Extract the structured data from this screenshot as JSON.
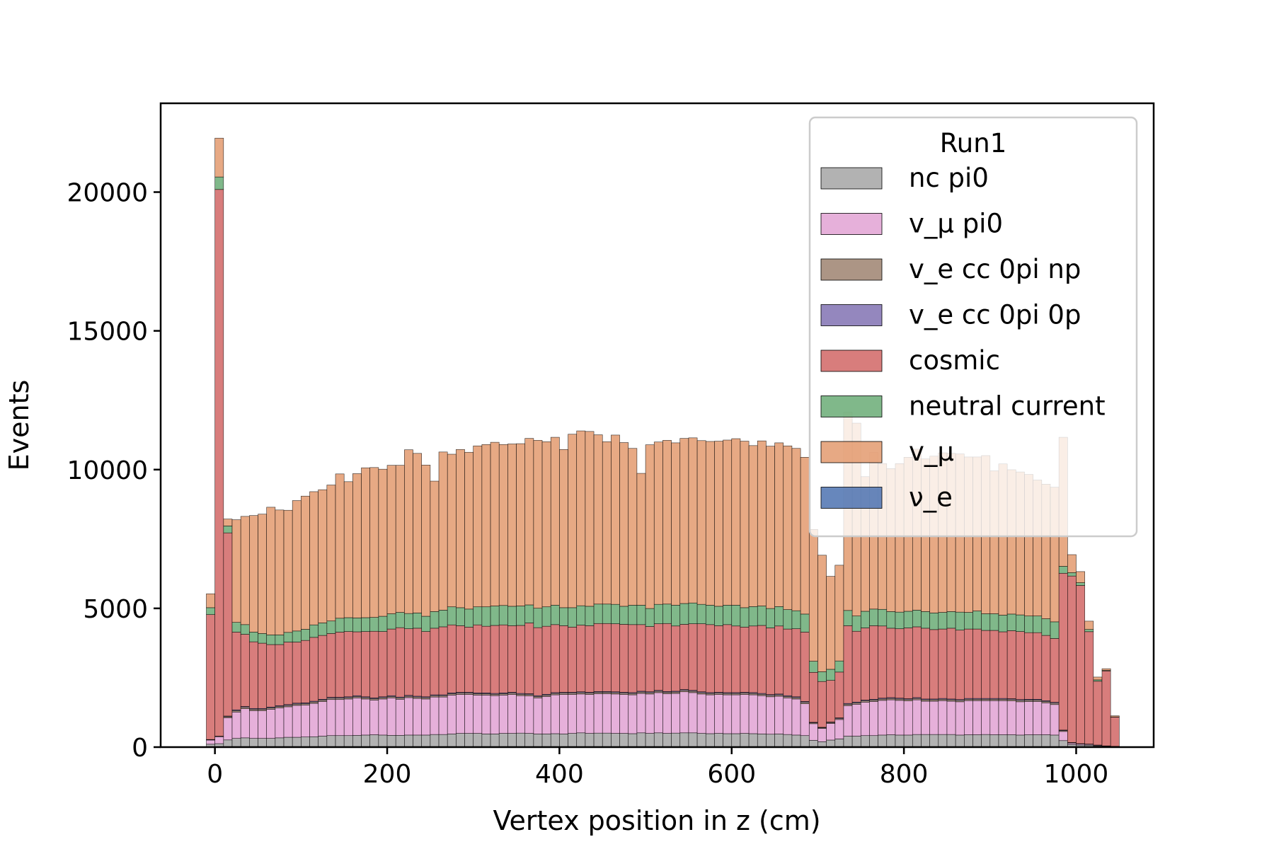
{
  "chart_data": {
    "type": "bar",
    "stacked": true,
    "histogram": true,
    "xlabel": "Vertex position in z (cm)",
    "ylabel": "Events",
    "xlim": [
      -63,
      1090
    ],
    "ylim": [
      0,
      23200
    ],
    "xticks": [
      0,
      200,
      400,
      600,
      800,
      1000
    ],
    "yticks": [
      0,
      5000,
      10000,
      15000,
      20000
    ],
    "bin_start": -10,
    "bin_width": 10,
    "legend": {
      "title": "Run1",
      "placement": "upper right",
      "entries": [
        "nc pi0",
        "v_μ pi0",
        "v_e cc 0pi np",
        "v_e cc 0pi 0p",
        "cosmic",
        "neutral current",
        "v_μ",
        "ν_e"
      ]
    },
    "series": [
      {
        "name": "ν_e",
        "color": "#4c72b0",
        "values": [
          5,
          5,
          10,
          15,
          15,
          15,
          15,
          15,
          15,
          15,
          15,
          15,
          15,
          15,
          15,
          15,
          15,
          15,
          15,
          15,
          15,
          15,
          15,
          15,
          15,
          15,
          15,
          15,
          15,
          15,
          15,
          15,
          15,
          15,
          15,
          15,
          15,
          15,
          15,
          15,
          15,
          15,
          15,
          15,
          15,
          15,
          15,
          15,
          15,
          15,
          15,
          15,
          15,
          15,
          15,
          15,
          15,
          15,
          15,
          15,
          15,
          15,
          15,
          15,
          15,
          15,
          15,
          15,
          15,
          15,
          15,
          15,
          15,
          15,
          15,
          15,
          15,
          15,
          15,
          15,
          15,
          15,
          15,
          15,
          15,
          15,
          15,
          15,
          15,
          15,
          15,
          15,
          15,
          15,
          15,
          15,
          15,
          15,
          15,
          15,
          15,
          15,
          10,
          5,
          5,
          5
        ]
      },
      {
        "name": "nc pi0",
        "color": "#a5a5a5",
        "values": [
          100,
          120,
          250,
          300,
          320,
          300,
          300,
          300,
          320,
          340,
          340,
          350,
          360,
          380,
          400,
          400,
          400,
          410,
          420,
          430,
          420,
          410,
          410,
          420,
          420,
          420,
          440,
          440,
          460,
          480,
          480,
          480,
          460,
          460,
          480,
          480,
          490,
          480,
          460,
          460,
          470,
          460,
          480,
          500,
          480,
          490,
          490,
          480,
          480,
          470,
          500,
          480,
          500,
          480,
          490,
          500,
          500,
          480,
          470,
          480,
          470,
          470,
          480,
          470,
          460,
          450,
          460,
          440,
          420,
          400,
          230,
          180,
          240,
          280,
          380,
          380,
          400,
          400,
          420,
          430,
          420,
          420,
          440,
          440,
          440,
          440,
          440,
          420,
          430,
          430,
          440,
          430,
          430,
          430,
          420,
          430,
          430,
          430,
          420,
          220,
          80,
          60,
          60,
          40,
          20,
          15
        ]
      },
      {
        "name": "v_μ pi0",
        "color": "#e2a2d4",
        "values": [
          150,
          250,
          800,
          950,
          1050,
          1000,
          1000,
          1050,
          1080,
          1100,
          1150,
          1150,
          1200,
          1250,
          1300,
          1300,
          1320,
          1350,
          1300,
          1250,
          1300,
          1350,
          1300,
          1350,
          1320,
          1300,
          1350,
          1350,
          1400,
          1400,
          1400,
          1380,
          1400,
          1380,
          1380,
          1400,
          1350,
          1350,
          1300,
          1350,
          1400,
          1420,
          1400,
          1400,
          1400,
          1420,
          1420,
          1420,
          1400,
          1400,
          1420,
          1420,
          1450,
          1430,
          1430,
          1480,
          1450,
          1420,
          1400,
          1400,
          1400,
          1400,
          1400,
          1400,
          1380,
          1350,
          1360,
          1320,
          1300,
          1150,
          600,
          480,
          600,
          700,
          1100,
          1150,
          1200,
          1230,
          1250,
          1260,
          1250,
          1230,
          1250,
          1200,
          1200,
          1220,
          1200,
          1200,
          1230,
          1230,
          1220,
          1230,
          1230,
          1220,
          1200,
          1200,
          1200,
          1150,
          1100,
          330,
          50,
          40,
          30,
          20,
          10,
          5
        ]
      },
      {
        "name": "v_e cc 0pi np",
        "color": "#9e8370",
        "values": [
          10,
          10,
          40,
          50,
          50,
          50,
          50,
          50,
          50,
          50,
          50,
          50,
          50,
          50,
          50,
          50,
          50,
          50,
          50,
          50,
          50,
          50,
          50,
          50,
          50,
          50,
          50,
          50,
          50,
          50,
          50,
          50,
          50,
          50,
          50,
          50,
          50,
          50,
          50,
          50,
          50,
          50,
          50,
          50,
          50,
          50,
          50,
          50,
          50,
          50,
          50,
          50,
          50,
          50,
          50,
          50,
          50,
          50,
          50,
          50,
          50,
          50,
          50,
          50,
          50,
          50,
          50,
          50,
          50,
          50,
          30,
          25,
          30,
          35,
          50,
          50,
          50,
          50,
          50,
          50,
          50,
          50,
          50,
          50,
          50,
          50,
          50,
          50,
          50,
          50,
          50,
          50,
          50,
          50,
          50,
          50,
          50,
          50,
          50,
          30,
          10,
          5,
          5,
          5,
          5,
          2
        ]
      },
      {
        "name": "v_e cc 0pi 0p",
        "color": "#8172b3",
        "values": [
          10,
          10,
          20,
          30,
          30,
          30,
          30,
          30,
          30,
          30,
          30,
          30,
          30,
          30,
          30,
          30,
          30,
          30,
          30,
          30,
          30,
          30,
          30,
          30,
          30,
          30,
          30,
          30,
          30,
          30,
          30,
          30,
          30,
          30,
          30,
          30,
          30,
          30,
          30,
          30,
          30,
          30,
          30,
          30,
          30,
          30,
          30,
          30,
          30,
          30,
          30,
          30,
          30,
          30,
          30,
          30,
          30,
          30,
          30,
          30,
          30,
          30,
          30,
          30,
          30,
          30,
          30,
          30,
          30,
          30,
          20,
          15,
          20,
          25,
          30,
          30,
          30,
          30,
          30,
          30,
          30,
          30,
          30,
          30,
          30,
          30,
          30,
          30,
          30,
          30,
          30,
          30,
          30,
          30,
          30,
          30,
          30,
          30,
          30,
          20,
          10,
          5,
          5,
          5,
          5,
          2
        ]
      },
      {
        "name": "cosmic",
        "color": "#d16665",
        "values": [
          4500,
          19700,
          6600,
          2800,
          2600,
          2400,
          2350,
          2250,
          2200,
          2250,
          2200,
          2250,
          2300,
          2300,
          2300,
          2350,
          2350,
          2300,
          2350,
          2400,
          2350,
          2400,
          2500,
          2400,
          2450,
          2350,
          2400,
          2450,
          2450,
          2400,
          2350,
          2450,
          2400,
          2450,
          2450,
          2400,
          2450,
          2550,
          2450,
          2450,
          2450,
          2400,
          2350,
          2400,
          2400,
          2450,
          2450,
          2450,
          2450,
          2450,
          2400,
          2350,
          2400,
          2450,
          2350,
          2350,
          2400,
          2450,
          2450,
          2400,
          2450,
          2400,
          2350,
          2400,
          2450,
          2400,
          2450,
          2400,
          2450,
          2500,
          1800,
          1650,
          1500,
          1650,
          2800,
          2550,
          2600,
          2650,
          2600,
          2500,
          2500,
          2550,
          2550,
          2550,
          2500,
          2500,
          2550,
          2500,
          2500,
          2500,
          2450,
          2450,
          2400,
          2450,
          2450,
          2400,
          2400,
          2350,
          2300,
          5650,
          6000,
          5700,
          4050,
          2300,
          2700,
          1050
        ]
      },
      {
        "name": "neutral current",
        "color": "#6aab75",
        "values": [
          250,
          450,
          250,
          350,
          350,
          350,
          350,
          350,
          350,
          350,
          400,
          400,
          450,
          450,
          450,
          500,
          500,
          500,
          500,
          500,
          550,
          550,
          550,
          550,
          550,
          550,
          600,
          600,
          650,
          650,
          650,
          650,
          700,
          700,
          700,
          700,
          700,
          650,
          700,
          700,
          700,
          650,
          700,
          700,
          700,
          700,
          700,
          700,
          650,
          700,
          700,
          650,
          700,
          700,
          750,
          750,
          750,
          700,
          700,
          700,
          700,
          750,
          700,
          700,
          700,
          700,
          700,
          700,
          650,
          650,
          400,
          350,
          400,
          400,
          550,
          550,
          600,
          600,
          600,
          600,
          600,
          600,
          600,
          600,
          600,
          600,
          600,
          650,
          600,
          650,
          600,
          600,
          600,
          600,
          600,
          600,
          600,
          600,
          600,
          250,
          120,
          100,
          80,
          50,
          20,
          10
        ]
      },
      {
        "name": "v_μ",
        "color": "#e39a6f",
        "values": [
          500,
          1400,
          250,
          3700,
          3900,
          4200,
          4300,
          4600,
          4500,
          4400,
          4700,
          4800,
          4800,
          4800,
          4900,
          5200,
          4900,
          5200,
          5400,
          5400,
          5300,
          5350,
          5300,
          5900,
          5750,
          5450,
          4700,
          5700,
          5500,
          5700,
          5650,
          5800,
          5850,
          5900,
          5800,
          5850,
          5850,
          6000,
          6050,
          5950,
          6050,
          5700,
          6250,
          6300,
          6300,
          6100,
          5850,
          6100,
          5900,
          5650,
          4750,
          5900,
          5850,
          5900,
          5850,
          5950,
          5950,
          5900,
          5900,
          5950,
          5950,
          6000,
          6000,
          5800,
          5950,
          5850,
          5900,
          5900,
          5850,
          5650,
          4750,
          4200,
          3350,
          3450,
          7150,
          6950,
          4850,
          5650,
          5250,
          5150,
          5350,
          5550,
          5800,
          5500,
          5650,
          5750,
          5700,
          5700,
          5600,
          5550,
          5700,
          5150,
          5450,
          5200,
          5150,
          5100,
          4900,
          4850,
          4850,
          4650,
          650,
          400,
          300,
          100,
          60,
          40
        ]
      }
    ]
  }
}
